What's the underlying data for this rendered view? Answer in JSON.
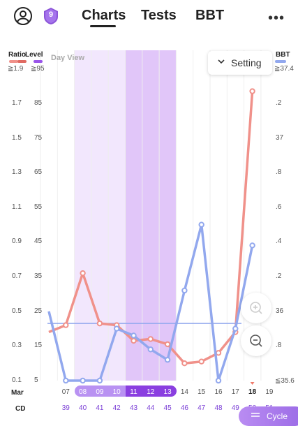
{
  "header": {
    "badge_number": "9",
    "tabs": [
      {
        "label": "Charts"
      },
      {
        "label": "Tests"
      },
      {
        "label": "BBT"
      }
    ],
    "more_label": "•••"
  },
  "chart": {
    "day_view_label": "Day View",
    "setting_label": "Setting",
    "ratio_title": "Ratio",
    "level_title": "Level",
    "bbt_title": "BBT",
    "ratio_max": "≧1.9",
    "level_max": "≧95",
    "bbt_max": "≧37.4",
    "bbt_min": "≦35.6",
    "ratio_ticks": [
      "1.7",
      "1.5",
      "1.3",
      "1.1",
      "0.9",
      "0.7",
      "0.5",
      "0.3",
      "0.1"
    ],
    "level_ticks": [
      "85",
      "75",
      "65",
      "55",
      "45",
      "35",
      "25",
      "15",
      "5"
    ],
    "bbt_ticks": [
      ".2",
      "37",
      ".8",
      ".6",
      ".4",
      ".2",
      "36",
      ".8"
    ],
    "month_label": "Mar",
    "cd_label": "CD",
    "dates": [
      "07",
      "08",
      "09",
      "10",
      "11",
      "12",
      "13",
      "14",
      "15",
      "16",
      "17",
      "18",
      "19"
    ],
    "cycle_days": [
      "39",
      "40",
      "41",
      "42",
      "43",
      "44",
      "45",
      "46",
      "47",
      "48",
      "49",
      "50",
      "51"
    ],
    "cycle_button_label": "Cycle",
    "colors": {
      "ratio": "#f0918a",
      "level": "#9a55ea",
      "bbt": "#92a8ee",
      "shade": "#e9d7fb",
      "shade_dark": "#dcbef8"
    }
  },
  "chart_data": {
    "type": "line",
    "x": [
      "06",
      "07",
      "08",
      "09",
      "10",
      "11",
      "12",
      "13",
      "14",
      "15",
      "16",
      "17",
      "18"
    ],
    "series": [
      {
        "name": "Ratio",
        "values": [
          0.38,
          0.42,
          0.72,
          0.43,
          0.42,
          0.33,
          0.34,
          0.31,
          0.2,
          0.21,
          0.26,
          0.38,
          1.77
        ]
      },
      {
        "name": "BBT",
        "values": [
          36.0,
          35.6,
          35.6,
          35.6,
          35.9,
          35.86,
          35.78,
          35.72,
          36.12,
          36.5,
          35.6,
          35.9,
          36.38
        ]
      }
    ],
    "ratio_axis": [
      0.1,
      1.7
    ],
    "bbt_axis": [
      35.6,
      37.2
    ],
    "bbt_cover_line": 35.93,
    "highlighted_dates": [
      "08",
      "09",
      "10",
      "11",
      "12",
      "13"
    ],
    "peak_dates": [
      "11",
      "12",
      "13"
    ]
  }
}
